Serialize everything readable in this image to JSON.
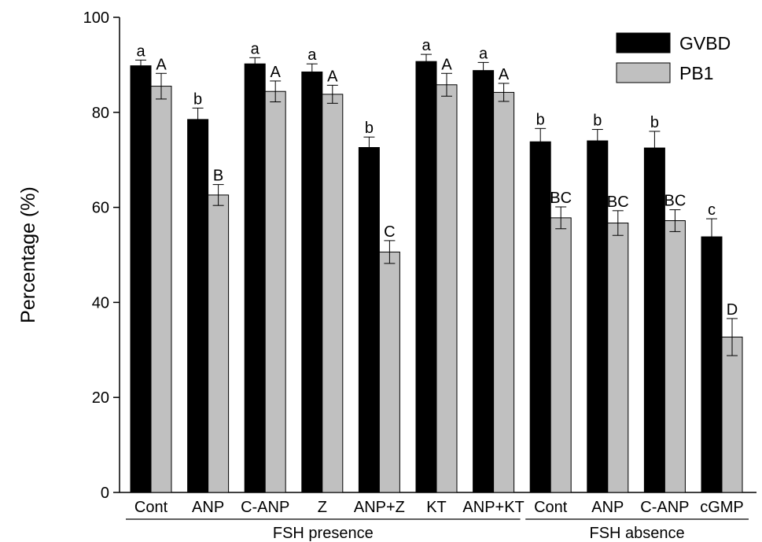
{
  "chart_data": {
    "type": "bar",
    "ylabel": "Percentage (%)",
    "xlabel": "",
    "ylim": [
      0,
      100
    ],
    "yticks": [
      0,
      20,
      40,
      60,
      80,
      100
    ],
    "categories": [
      "Cont",
      "ANP",
      "C-ANP",
      "Z",
      "ANP+Z",
      "KT",
      "ANP+KT",
      "Cont",
      "ANP",
      "C-ANP",
      "cGMP"
    ],
    "groups": [
      {
        "label": "FSH presence",
        "start": 0,
        "end": 6
      },
      {
        "label": "FSH absence",
        "start": 7,
        "end": 10
      }
    ],
    "legend_position": "top-right",
    "grid": false,
    "series": [
      {
        "name": "GVBD",
        "color": "#000000",
        "values": [
          89.8,
          78.5,
          90.2,
          88.5,
          72.6,
          90.7,
          88.8,
          73.8,
          74.0,
          72.5,
          53.8
        ],
        "errors": [
          1.2,
          2.4,
          1.3,
          1.7,
          2.2,
          1.5,
          1.7,
          2.8,
          2.4,
          3.5,
          3.8
        ],
        "letters": [
          "a",
          "b",
          "a",
          "a",
          "b",
          "a",
          "a",
          "b",
          "b",
          "b",
          "c"
        ]
      },
      {
        "name": "PB1",
        "color": "#c0c0c0",
        "values": [
          85.5,
          62.6,
          84.4,
          83.8,
          50.6,
          85.8,
          84.2,
          57.8,
          56.7,
          57.2,
          32.7
        ],
        "errors": [
          2.7,
          2.2,
          2.2,
          1.9,
          2.4,
          2.4,
          1.9,
          2.3,
          2.6,
          2.3,
          3.9
        ],
        "letters": [
          "A",
          "B",
          "A",
          "A",
          "C",
          "A",
          "A",
          "BC",
          "BC",
          "BC",
          "D"
        ]
      }
    ]
  }
}
